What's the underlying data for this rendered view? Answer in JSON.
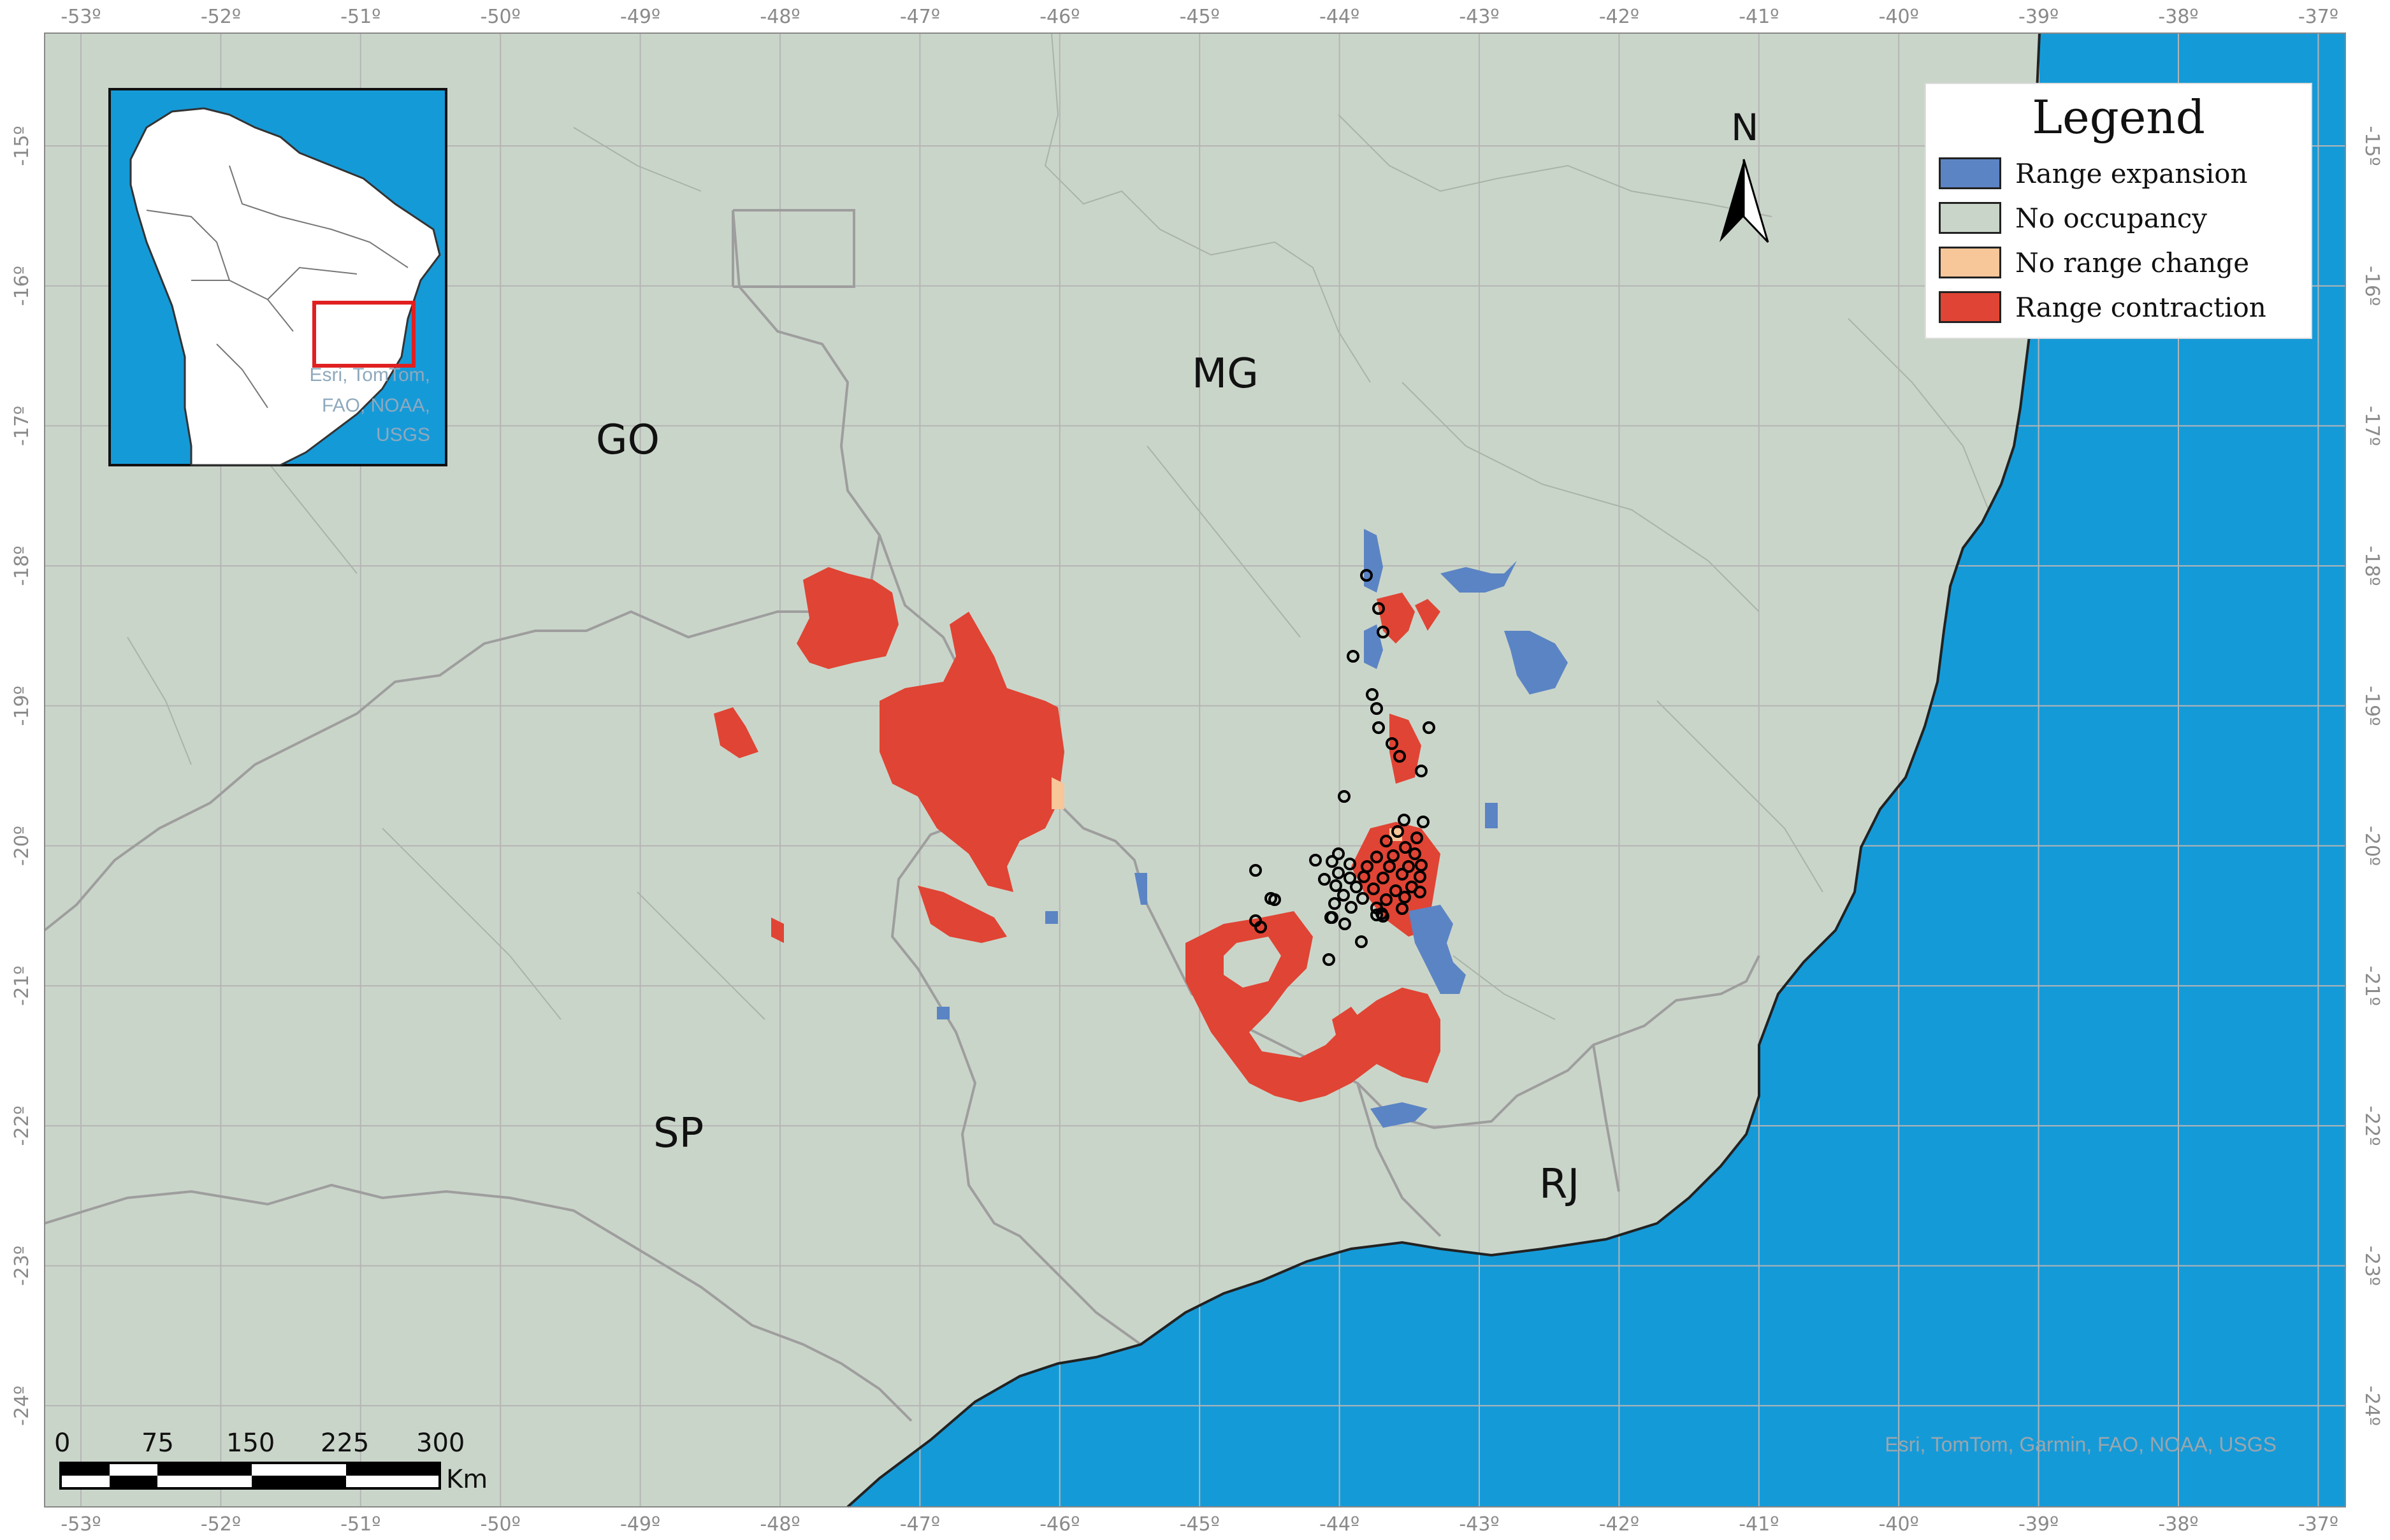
{
  "map": {
    "graticule": {
      "top_labels": [
        "-53º",
        "-52º",
        "-51º",
        "-50º",
        "-49º",
        "-48º",
        "-47º",
        "-46º",
        "-45º",
        "-44º",
        "-43º",
        "-42º",
        "-41º",
        "-40º",
        "-39º",
        "-38º",
        "-37º"
      ],
      "bottom_labels": [
        "-53º",
        "-52º",
        "-51º",
        "-50º",
        "-49º",
        "-48º",
        "-47º",
        "-46º",
        "-45º",
        "-44º",
        "-43º",
        "-42º",
        "-41º",
        "-40º",
        "-39º",
        "-38º",
        "-37º"
      ],
      "left_labels": [
        "-15º",
        "-16º",
        "-17º",
        "-18º",
        "-19º",
        "-20º",
        "-21º",
        "-22º",
        "-23º",
        "-24º"
      ],
      "right_labels": [
        "-15º",
        "-16º",
        "-17º",
        "-18º",
        "-19º",
        "-20º",
        "-21º",
        "-22º",
        "-23º",
        "-24º"
      ]
    },
    "state_labels": {
      "go": "GO",
      "mg": "MG",
      "sp": "SP",
      "rj": "RJ"
    },
    "north_arrow": {
      "label": "N"
    },
    "credit": "Esri, TomTom, Garmin, FAO, NOAA, USGS",
    "inset_credit": [
      "Esri, TomTom,",
      "FAO, NOAA,",
      "USGS"
    ],
    "colors": {
      "ocean": "#159ad8",
      "land": "#cad5c9",
      "range_expansion": "#5b84c4",
      "no_occupancy": "#cad5c9",
      "no_range_change": "#f7c699",
      "range_contraction": "#e04434"
    }
  },
  "legend": {
    "title": "Legend",
    "items": [
      {
        "label": "Range expansion",
        "color": "#5b84c4"
      },
      {
        "label": "No occupancy",
        "color": "#cad5c9"
      },
      {
        "label": "No range change",
        "color": "#f7c699"
      },
      {
        "label": "Range contraction",
        "color": "#e04434"
      }
    ]
  },
  "scale_bar": {
    "ticks": [
      "0",
      "75",
      "150",
      "225",
      "300"
    ],
    "unit": "Km"
  }
}
